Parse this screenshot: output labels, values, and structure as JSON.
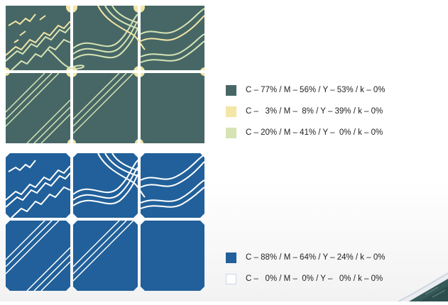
{
  "palettes": [
    {
      "name": "grey-green",
      "tile_color": "#476766",
      "accent_color": "#f3e6a6",
      "accent2_color": "#d6e3b4",
      "swatches": [
        {
          "color": "#476766",
          "label": "C – 77% / M – 56% / Y – 53% / k – 0%"
        },
        {
          "color": "#f3e6a6",
          "label": "C –   3% / M –  8% / Y – 39% / k – 0%"
        },
        {
          "color": "#d6e3b4",
          "label": "C – 20% / M – 41% / Y –  0% / k – 0%"
        }
      ]
    },
    {
      "name": "blue",
      "tile_color": "#21609a",
      "accent_color": "#ffffff",
      "swatches": [
        {
          "color": "#21609a",
          "label": "C – 88% / M – 64% / Y – 24% / k – 0%"
        },
        {
          "color": "#ffffff",
          "label": "C –   0% / M –  0% / Y –   0% / k – 0%"
        }
      ]
    }
  ]
}
